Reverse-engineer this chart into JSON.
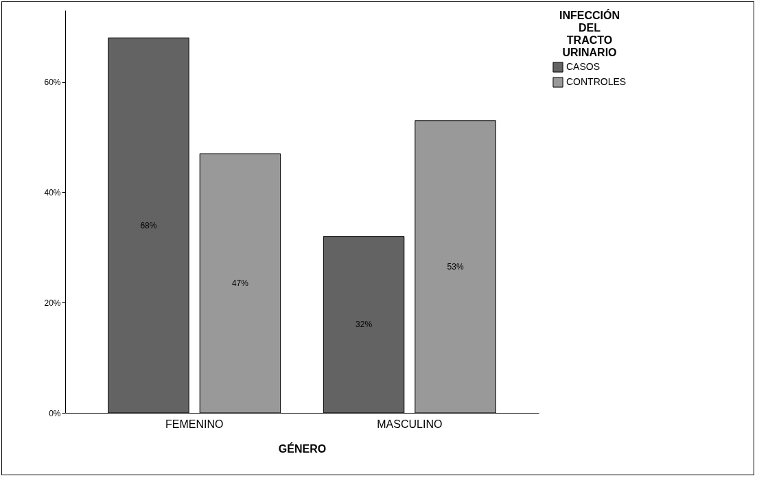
{
  "chart_data": {
    "type": "bar",
    "categories": [
      "FEMENINO",
      "MASCULINO"
    ],
    "series": [
      {
        "name": "CASOS",
        "color": "#636363",
        "values": [
          68,
          32
        ],
        "value_labels": [
          "68%",
          "32%"
        ]
      },
      {
        "name": "CONTROLES",
        "color": "#999999",
        "values": [
          47,
          53
        ],
        "value_labels": [
          "47%",
          "53%"
        ]
      }
    ],
    "xlabel": "GÉNERO",
    "legend_title": "INFECCIÓN DEL TRACTO URINARIO",
    "ylim": [
      0,
      73
    ],
    "yticks": [
      {
        "value": 0,
        "label": "0%"
      },
      {
        "value": 20,
        "label": "20%"
      },
      {
        "value": 40,
        "label": "40%"
      },
      {
        "value": 60,
        "label": "60%"
      }
    ],
    "grid": false,
    "legend": "top right"
  }
}
